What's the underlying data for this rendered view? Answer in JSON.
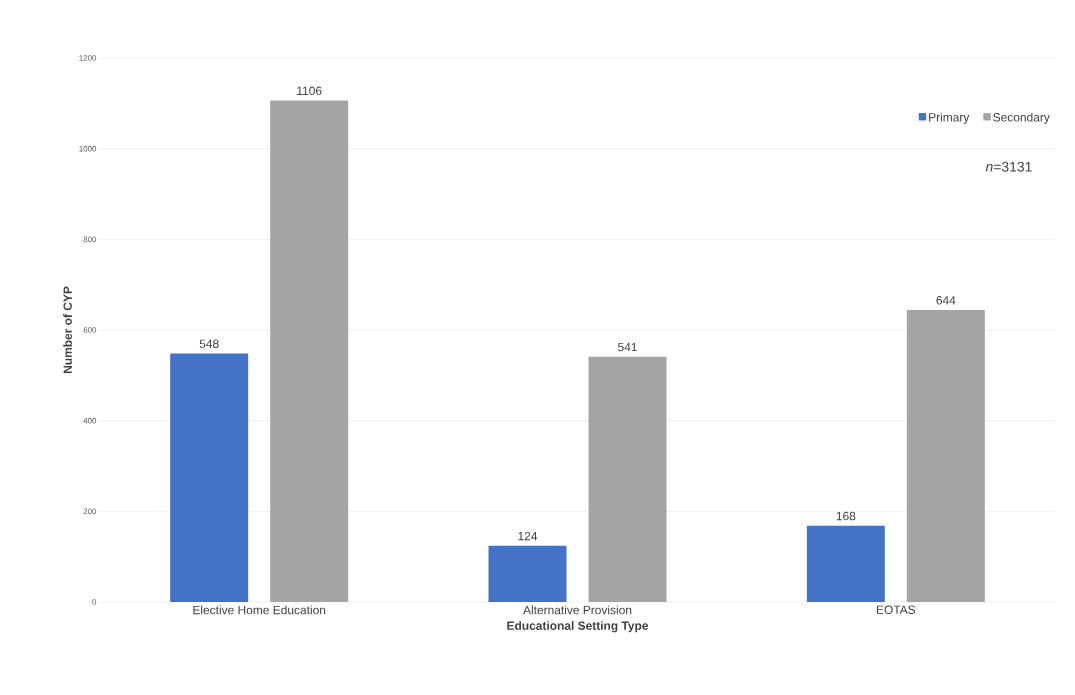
{
  "chart_data": {
    "type": "bar",
    "xlabel": "Educational Setting Type",
    "ylabel": "Number of CYP",
    "categories": [
      "Elective Home Education",
      "Alternative Provision",
      "EOTAS"
    ],
    "series": [
      {
        "name": "Primary",
        "color": "#4472c4",
        "values": [
          548,
          124,
          168
        ]
      },
      {
        "name": "Secondary",
        "color": "#a5a5a5",
        "values": [
          1106,
          541,
          644
        ]
      }
    ],
    "ylim": [
      0,
      1200
    ],
    "yticks": [
      0,
      200,
      400,
      600,
      800,
      1000,
      1200
    ],
    "grid": "y",
    "legend": "top right",
    "data_labels": true,
    "annotations": [
      "*n*=3131"
    ]
  }
}
